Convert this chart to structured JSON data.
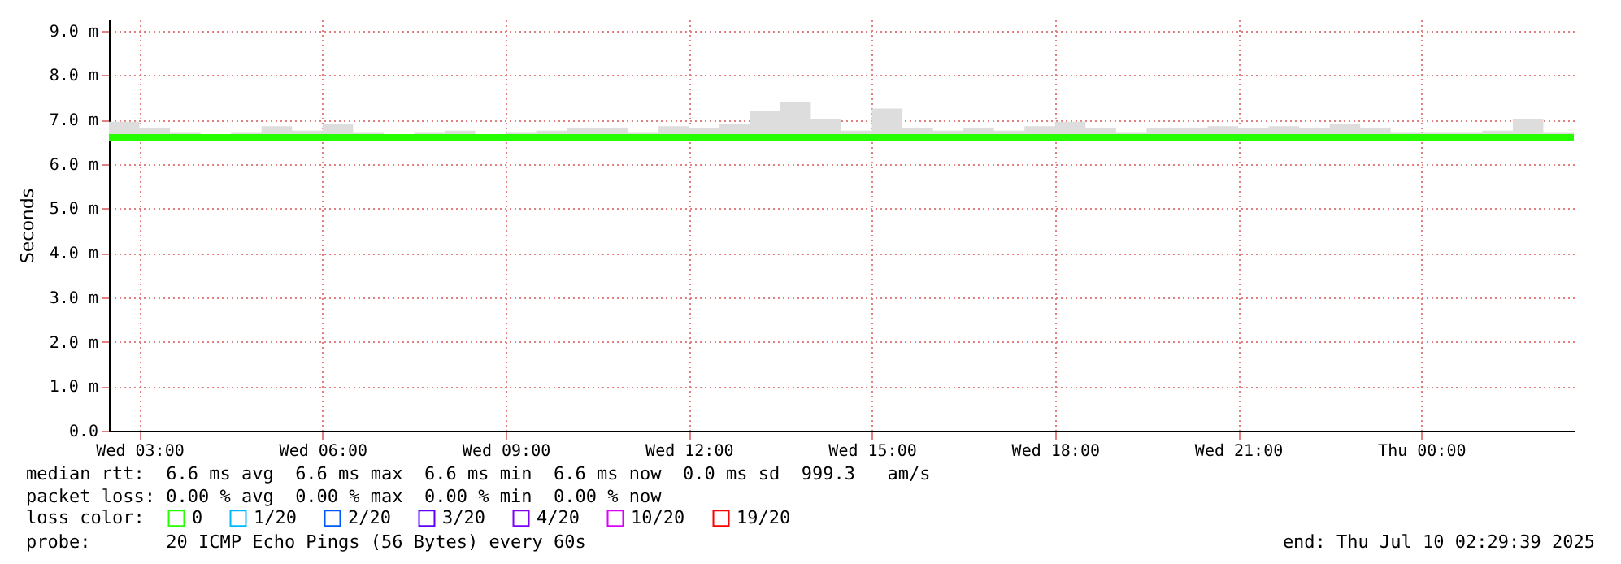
{
  "chart_data": {
    "type": "line",
    "ylabel": "Seconds",
    "x": [
      "2025-07-09T02:30",
      "2025-07-09T03:00",
      "2025-07-09T03:30",
      "2025-07-09T04:00",
      "2025-07-09T04:30",
      "2025-07-09T05:00",
      "2025-07-09T05:30",
      "2025-07-09T06:00",
      "2025-07-09T06:30",
      "2025-07-09T07:00",
      "2025-07-09T07:30",
      "2025-07-09T08:00",
      "2025-07-09T08:30",
      "2025-07-09T09:00",
      "2025-07-09T09:30",
      "2025-07-09T10:00",
      "2025-07-09T10:30",
      "2025-07-09T11:00",
      "2025-07-09T11:30",
      "2025-07-09T12:00",
      "2025-07-09T12:30",
      "2025-07-09T13:00",
      "2025-07-09T13:30",
      "2025-07-09T14:00",
      "2025-07-09T14:30",
      "2025-07-09T15:00",
      "2025-07-09T15:30",
      "2025-07-09T16:00",
      "2025-07-09T16:30",
      "2025-07-09T17:00",
      "2025-07-09T17:30",
      "2025-07-09T18:00",
      "2025-07-09T18:30",
      "2025-07-09T19:00",
      "2025-07-09T19:30",
      "2025-07-09T20:00",
      "2025-07-09T20:30",
      "2025-07-09T21:00",
      "2025-07-09T21:30",
      "2025-07-09T22:00",
      "2025-07-09T22:30",
      "2025-07-09T23:00",
      "2025-07-09T23:30",
      "2025-07-10T00:00",
      "2025-07-10T00:30",
      "2025-07-10T01:00",
      "2025-07-10T01:30",
      "2025-07-10T02:00",
      "2025-07-10T02:30"
    ],
    "series": [
      {
        "name": "0",
        "color": "#26ff00",
        "values": [
          6.6,
          6.6,
          6.6,
          6.6,
          6.6,
          6.6,
          6.6,
          6.6,
          6.6,
          6.6,
          6.6,
          6.6,
          6.6,
          6.6,
          6.6,
          6.6,
          6.6,
          6.6,
          6.6,
          6.6,
          6.6,
          6.6,
          6.6,
          6.6,
          6.6,
          6.6,
          6.6,
          6.6,
          6.6,
          6.6,
          6.6,
          6.6,
          6.6,
          6.6,
          6.6,
          6.6,
          6.6,
          6.6,
          6.6,
          6.6,
          6.6,
          6.6,
          6.6,
          6.6,
          6.6,
          6.6,
          6.6,
          6.6,
          6.6
        ],
        "lower": [
          6.55,
          6.55,
          6.55,
          6.55,
          6.55,
          6.55,
          6.55,
          6.55,
          6.55,
          6.55,
          6.55,
          6.55,
          6.55,
          6.55,
          6.55,
          6.55,
          6.55,
          6.55,
          6.55,
          6.55,
          6.55,
          6.55,
          6.55,
          6.55,
          6.55,
          6.55,
          6.55,
          6.55,
          6.55,
          6.55,
          6.55,
          6.55,
          6.55,
          6.55,
          6.55,
          6.55,
          6.55,
          6.55,
          6.55,
          6.55,
          6.55,
          6.55,
          6.55,
          6.55,
          6.55,
          6.55,
          6.55,
          6.55,
          6.55
        ],
        "upper": [
          6.95,
          6.8,
          6.7,
          6.65,
          6.7,
          6.85,
          6.75,
          6.9,
          6.7,
          6.65,
          6.7,
          6.75,
          6.65,
          6.7,
          6.75,
          6.8,
          6.8,
          6.7,
          6.85,
          6.8,
          6.9,
          7.2,
          7.4,
          7.0,
          6.75,
          7.25,
          6.8,
          6.75,
          6.8,
          6.75,
          6.85,
          6.95,
          6.8,
          6.7,
          6.8,
          6.8,
          6.85,
          6.8,
          6.85,
          6.8,
          6.9,
          6.8,
          6.7,
          6.7,
          6.7,
          6.75,
          7.0,
          6.7,
          6.7
        ]
      },
      {
        "name": "1/20",
        "color": "#00b8ff",
        "values": [
          null,
          null,
          null,
          null,
          null,
          null,
          null,
          null,
          null,
          null,
          null,
          null,
          null,
          null,
          null,
          null,
          null,
          null,
          null,
          null,
          null,
          null,
          null,
          null,
          null,
          null,
          null,
          null,
          null,
          null,
          null,
          null,
          null,
          null,
          null,
          null,
          null,
          null,
          null,
          null,
          null,
          null,
          null,
          null,
          null,
          null,
          null,
          null,
          null
        ]
      },
      {
        "name": "2/20",
        "color": "#0059ff",
        "values": [
          null,
          null,
          null,
          null,
          null,
          null,
          null,
          null,
          null,
          null,
          null,
          null,
          null,
          null,
          null,
          null,
          null,
          null,
          null,
          null,
          null,
          null,
          null,
          null,
          null,
          null,
          null,
          null,
          null,
          null,
          null,
          null,
          null,
          null,
          null,
          null,
          null,
          null,
          null,
          null,
          null,
          null,
          null,
          null,
          null,
          null,
          null,
          null,
          null
        ]
      },
      {
        "name": "3/20",
        "color": "#5e00ff",
        "values": [
          null,
          null,
          null,
          null,
          null,
          null,
          null,
          null,
          null,
          null,
          null,
          null,
          null,
          null,
          null,
          null,
          null,
          null,
          null,
          null,
          null,
          null,
          null,
          null,
          null,
          null,
          null,
          null,
          null,
          null,
          null,
          null,
          null,
          null,
          null,
          null,
          null,
          null,
          null,
          null,
          null,
          null,
          null,
          null,
          null,
          null,
          null,
          null,
          null
        ]
      },
      {
        "name": "4/20",
        "color": "#7e00ff",
        "values": [
          null,
          null,
          null,
          null,
          null,
          null,
          null,
          null,
          null,
          null,
          null,
          null,
          null,
          null,
          null,
          null,
          null,
          null,
          null,
          null,
          null,
          null,
          null,
          null,
          null,
          null,
          null,
          null,
          null,
          null,
          null,
          null,
          null,
          null,
          null,
          null,
          null,
          null,
          null,
          null,
          null,
          null,
          null,
          null,
          null,
          null,
          null,
          null,
          null
        ]
      },
      {
        "name": "10/20",
        "color": "#dd00ff",
        "values": [
          null,
          null,
          null,
          null,
          null,
          null,
          null,
          null,
          null,
          null,
          null,
          null,
          null,
          null,
          null,
          null,
          null,
          null,
          null,
          null,
          null,
          null,
          null,
          null,
          null,
          null,
          null,
          null,
          null,
          null,
          null,
          null,
          null,
          null,
          null,
          null,
          null,
          null,
          null,
          null,
          null,
          null,
          null,
          null,
          null,
          null,
          null,
          null,
          null
        ]
      },
      {
        "name": "19/20",
        "color": "#ff0000",
        "values": [
          null,
          null,
          null,
          null,
          null,
          null,
          null,
          null,
          null,
          null,
          null,
          null,
          null,
          null,
          null,
          null,
          null,
          null,
          null,
          null,
          null,
          null,
          null,
          null,
          null,
          null,
          null,
          null,
          null,
          null,
          null,
          null,
          null,
          null,
          null,
          null,
          null,
          null,
          null,
          null,
          null,
          null,
          null,
          null,
          null,
          null,
          null,
          null,
          null
        ]
      }
    ],
    "legend_title": "loss color:",
    "legend": "bottom left",
    "grid": true,
    "xlim": [
      "2025-07-09T02:30",
      "2025-07-10T02:30"
    ],
    "xticks": [
      {
        "value": "2025-07-09T03:00",
        "label": "Wed 03:00"
      },
      {
        "value": "2025-07-09T06:00",
        "label": "Wed 06:00"
      },
      {
        "value": "2025-07-09T09:00",
        "label": "Wed 09:00"
      },
      {
        "value": "2025-07-09T12:00",
        "label": "Wed 12:00"
      },
      {
        "value": "2025-07-09T15:00",
        "label": "Wed 15:00"
      },
      {
        "value": "2025-07-09T18:00",
        "label": "Wed 18:00"
      },
      {
        "value": "2025-07-09T21:00",
        "label": "Wed 21:00"
      },
      {
        "value": "2025-07-10T00:00",
        "label": "Thu 00:00"
      }
    ],
    "ylim": [
      0,
      9.25
    ],
    "yticks": [
      {
        "value": 0,
        "label": "0.0"
      },
      {
        "value": 1,
        "label": "1.0 m"
      },
      {
        "value": 2,
        "label": "2.0 m"
      },
      {
        "value": 3,
        "label": "3.0 m"
      },
      {
        "value": 4,
        "label": "4.0 m"
      },
      {
        "value": 5,
        "label": "5.0 m"
      },
      {
        "value": 6,
        "label": "6.0 m"
      },
      {
        "value": 7,
        "label": "7.0 m"
      },
      {
        "value": 8,
        "label": "8.0 m"
      },
      {
        "value": 9,
        "label": "9.0 m"
      }
    ],
    "annotations": [
      "median rtt:  6.6 ms avg  6.6 ms max  6.6 ms min  6.6 ms now  0.0 ms sd  999.3   am/s",
      "packet loss: 0.00 % avg  0.00 % max  0.00 % min  0.00 % now",
      "probe:       20 ICMP Echo Pings (56 Bytes) every 60s",
      "end: Thu Jul 10 02:29:39 2025"
    ]
  }
}
